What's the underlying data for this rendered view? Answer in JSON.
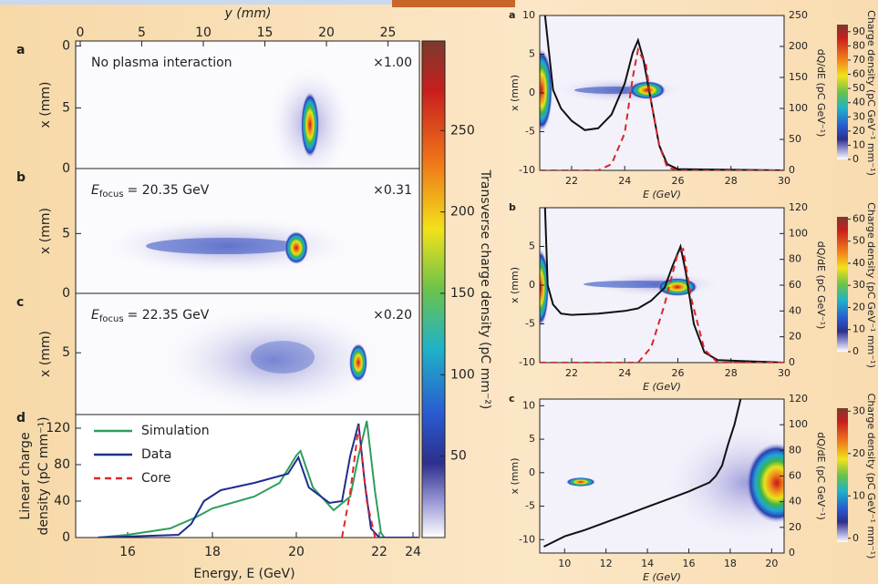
{
  "chart_data": [
    {
      "type": "image",
      "panel": "a",
      "x_label": "y (mm)",
      "xlim": [
        -0.37,
        27.55
      ],
      "xticks": [
        0,
        5,
        10,
        15,
        20,
        25
      ],
      "y_label": "x (mm)",
      "ylim": [
        -0.4,
        9.9
      ],
      "yticks": [
        0,
        5
      ],
      "annotation": "No plasma interaction",
      "scale": "×1.00"
    },
    {
      "type": "image",
      "panel": "b",
      "y_label": "x (mm)",
      "ylim": [
        0,
        9.6
      ],
      "yticks": [
        0,
        5
      ],
      "annotation": {
        "symbol": "E",
        "subscript": "focus",
        "text": "= 20.35 GeV"
      },
      "scale": "×0.31"
    },
    {
      "type": "image",
      "panel": "c",
      "y_label": "x (mm)",
      "ylim": [
        0,
        10.2
      ],
      "yticks": [
        0,
        5
      ],
      "annotation": {
        "symbol": "E",
        "subscript": "focus",
        "text": "= 22.35 GeV"
      },
      "scale": "×0.20"
    },
    {
      "type": "line",
      "panel": "d",
      "x_label": "Energy, E (GeV)",
      "xlim": [
        14.8,
        24.3
      ],
      "xticks": [
        16,
        18,
        20,
        22,
        24
      ],
      "y_label": [
        "Linear charge",
        "density (pC mm⁻¹)"
      ],
      "ylim": [
        0,
        135
      ],
      "yticks": [
        0,
        40,
        80,
        120
      ],
      "legend": "upper left",
      "series": [
        {
          "name": "Simulation",
          "color": "#2e9e5b",
          "style": "solid",
          "x": [
            15.3,
            16,
            17,
            17.6,
            18,
            19,
            19.6,
            20,
            20.1,
            20.4,
            20.9,
            21.3,
            21.5,
            21.7,
            21.9,
            22.1,
            22.3
          ],
          "values": [
            0,
            3,
            10,
            22,
            32,
            45,
            60,
            90,
            95,
            55,
            30,
            45,
            90,
            128,
            50,
            5,
            0
          ]
        },
        {
          "name": "Data",
          "color": "#1f2d8f",
          "style": "solid",
          "x": [
            15.3,
            17.2,
            17.5,
            17.8,
            18.2,
            19,
            19.8,
            20.05,
            20.3,
            20.8,
            21.1,
            21.3,
            21.5,
            21.65,
            21.8,
            22,
            24.3
          ],
          "values": [
            0,
            3,
            15,
            40,
            52,
            60,
            70,
            88,
            55,
            38,
            40,
            90,
            125,
            60,
            10,
            0,
            0
          ]
        },
        {
          "name": "Core",
          "color": "#e0262a",
          "style": "dashed",
          "x": [
            21.1,
            21.3,
            21.5,
            21.7,
            21.9
          ],
          "values": [
            0,
            50,
            122,
            40,
            0
          ]
        }
      ]
    },
    {
      "type": "colorbar",
      "label": "Transverse charge density (pC mm⁻²)",
      "ylim": [
        0,
        305
      ],
      "yticks": [
        50,
        100,
        150,
        200,
        250
      ]
    },
    {
      "type": "image-line",
      "panel": "a",
      "x_label": "E (GeV)",
      "xlim": [
        20.8,
        30
      ],
      "xticks": [
        22,
        24,
        26,
        28,
        30
      ],
      "y_label": "x (mm)",
      "ylim": [
        -10,
        10
      ],
      "yticks": [
        -10,
        -5,
        0,
        5,
        10
      ],
      "y2_label": "dQ/dE (pC GeV⁻¹)",
      "y2lim": [
        0,
        250
      ],
      "y2ticks": [
        0,
        50,
        100,
        150,
        200,
        250
      ],
      "colorbar_label": "Charge density (pC GeV⁻¹ mm⁻¹)",
      "colorbar_lim": [
        0,
        95
      ],
      "colorbar_ticks": [
        0,
        10,
        20,
        30,
        40,
        50,
        60,
        70,
        80,
        90
      ],
      "series": [
        {
          "color": "#111111",
          "style": "solid",
          "axis": "y2",
          "x": [
            21.0,
            21.3,
            21.6,
            22,
            22.5,
            23,
            23.5,
            24,
            24.3,
            24.5,
            24.7,
            25,
            25.3,
            25.6,
            26,
            30
          ],
          "values": [
            250,
            130,
            100,
            80,
            65,
            68,
            90,
            140,
            190,
            210,
            180,
            110,
            40,
            10,
            2,
            0
          ]
        },
        {
          "color": "#d9262a",
          "style": "dashed",
          "axis": "y2",
          "x": [
            20.8,
            23,
            23.5,
            24,
            24.3,
            24.5,
            24.8,
            25,
            25.3,
            25.6,
            26,
            30
          ],
          "values": [
            0,
            0,
            10,
            60,
            150,
            195,
            170,
            110,
            40,
            5,
            0,
            0
          ]
        }
      ]
    },
    {
      "type": "image-line",
      "panel": "b",
      "x_label": "E (GeV)",
      "xlim": [
        20.8,
        30
      ],
      "xticks": [
        22,
        24,
        26,
        28,
        30
      ],
      "y_label": "x (mm)",
      "ylim": [
        -10,
        10
      ],
      "yticks": [
        -10,
        -5,
        0,
        5
      ],
      "y2_label": "dQ/dE (pC GeV⁻¹)",
      "y2lim": [
        0,
        120
      ],
      "y2ticks": [
        0,
        20,
        40,
        60,
        80,
        100,
        120
      ],
      "colorbar_label": "Charge density (pC GeV⁻¹ mm⁻¹)",
      "colorbar_lim": [
        0,
        61
      ],
      "colorbar_ticks": [
        0,
        10,
        20,
        30,
        40,
        50,
        60
      ],
      "series": [
        {
          "color": "#111111",
          "style": "solid",
          "axis": "y2",
          "x": [
            21.0,
            21.1,
            21.3,
            21.6,
            22,
            23,
            24,
            24.5,
            25,
            25.5,
            25.8,
            26.1,
            26.3,
            26.6,
            27,
            27.5,
            30
          ],
          "values": [
            120,
            60,
            45,
            38,
            37,
            38,
            40,
            42,
            48,
            58,
            75,
            90,
            70,
            30,
            8,
            2,
            0
          ]
        },
        {
          "color": "#d9262a",
          "style": "dashed",
          "axis": "y2",
          "x": [
            20.8,
            24.5,
            25,
            25.5,
            26,
            26.2,
            26.5,
            27,
            27.5,
            30
          ],
          "values": [
            0,
            0,
            12,
            45,
            85,
            88,
            50,
            10,
            0,
            0
          ]
        }
      ]
    },
    {
      "type": "image-line",
      "panel": "c",
      "x_label": "E (GeV)",
      "xlim": [
        8.8,
        20.6
      ],
      "xticks": [
        10,
        12,
        14,
        16,
        18,
        20
      ],
      "y_label": "x (mm)",
      "ylim": [
        -12,
        11
      ],
      "yticks": [
        -10,
        -5,
        0,
        5,
        10
      ],
      "y2_label": "dQ/dE (pC GeV⁻¹)",
      "y2lim": [
        0,
        120
      ],
      "y2ticks": [
        0,
        20,
        40,
        60,
        80,
        100,
        120
      ],
      "colorbar_label": "Charge density (pC GeV⁻¹ mm⁻¹)",
      "colorbar_lim": [
        -0.9,
        30.7
      ],
      "colorbar_ticks": [
        0,
        10,
        20,
        30
      ],
      "series": [
        {
          "color": "#111111",
          "style": "solid",
          "axis": "y2",
          "x": [
            9,
            10,
            11,
            12,
            13,
            14,
            15,
            16,
            17,
            17.3,
            17.6,
            17.9,
            18.2,
            18.5
          ],
          "values": [
            5,
            13,
            18,
            24,
            30,
            36,
            42,
            48,
            55,
            60,
            68,
            85,
            100,
            120
          ]
        }
      ]
    }
  ]
}
